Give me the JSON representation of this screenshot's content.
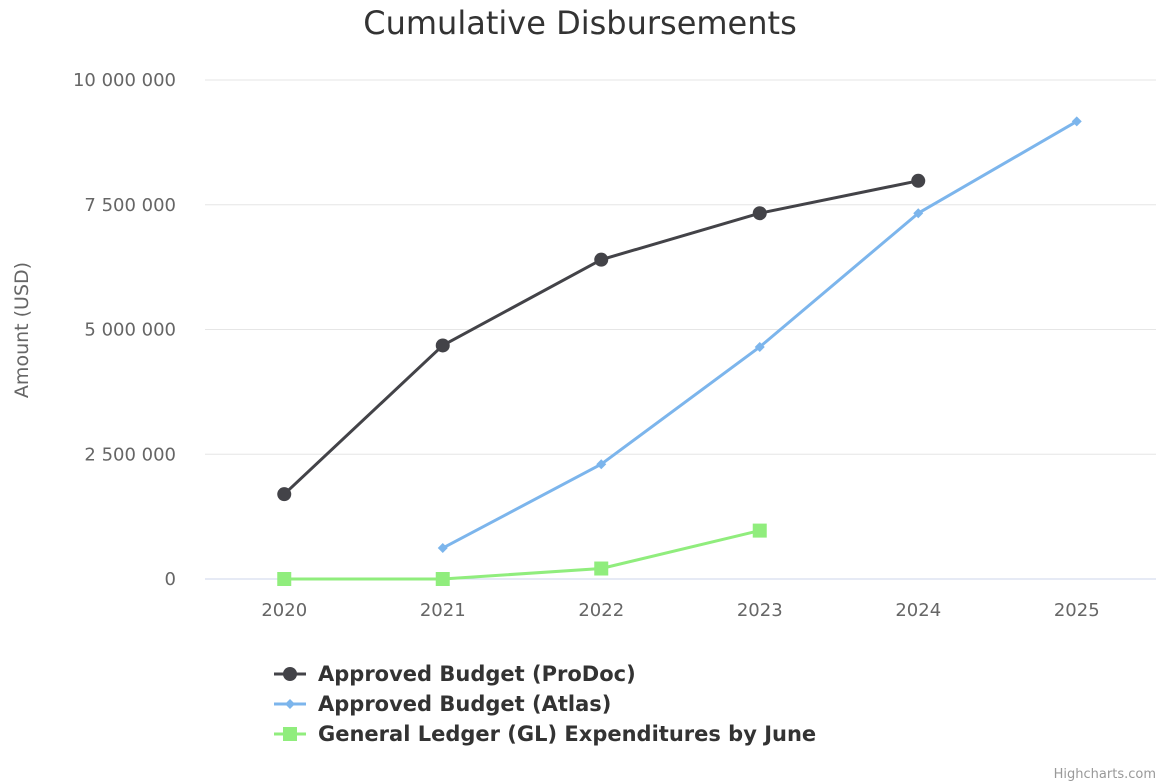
{
  "chart_data": {
    "type": "line",
    "title": "Cumulative Disbursements",
    "ylabel": "Amount (USD)",
    "xlabel": "",
    "categories": [
      "2020",
      "2021",
      "2022",
      "2023",
      "2024",
      "2025"
    ],
    "ylim": [
      0,
      10000000
    ],
    "yticks": [
      0,
      2500000,
      5000000,
      7500000,
      10000000
    ],
    "ytick_labels": [
      "0",
      "2 500 000",
      "5 000 000",
      "7 500 000",
      "10 000 000"
    ],
    "grid": true,
    "legend_position": "bottom",
    "series": [
      {
        "name": "Approved Budget (ProDoc)",
        "color": "#434348",
        "marker": "circle",
        "values": [
          1700000,
          4680000,
          6400000,
          7330000,
          7980000,
          null
        ]
      },
      {
        "name": "Approved Budget (Atlas)",
        "color": "#7cb5ec",
        "marker": "diamond",
        "values": [
          null,
          620000,
          2300000,
          4650000,
          7330000,
          9170000
        ]
      },
      {
        "name": "General Ledger (GL) Expenditures by June",
        "color": "#90ed7d",
        "marker": "square",
        "values": [
          0,
          0,
          210000,
          970000,
          null,
          null
        ]
      }
    ]
  },
  "credits": "Highcharts.com",
  "colors": {
    "grid": "#e6e6e6",
    "axis": "#ccd6eb"
  }
}
